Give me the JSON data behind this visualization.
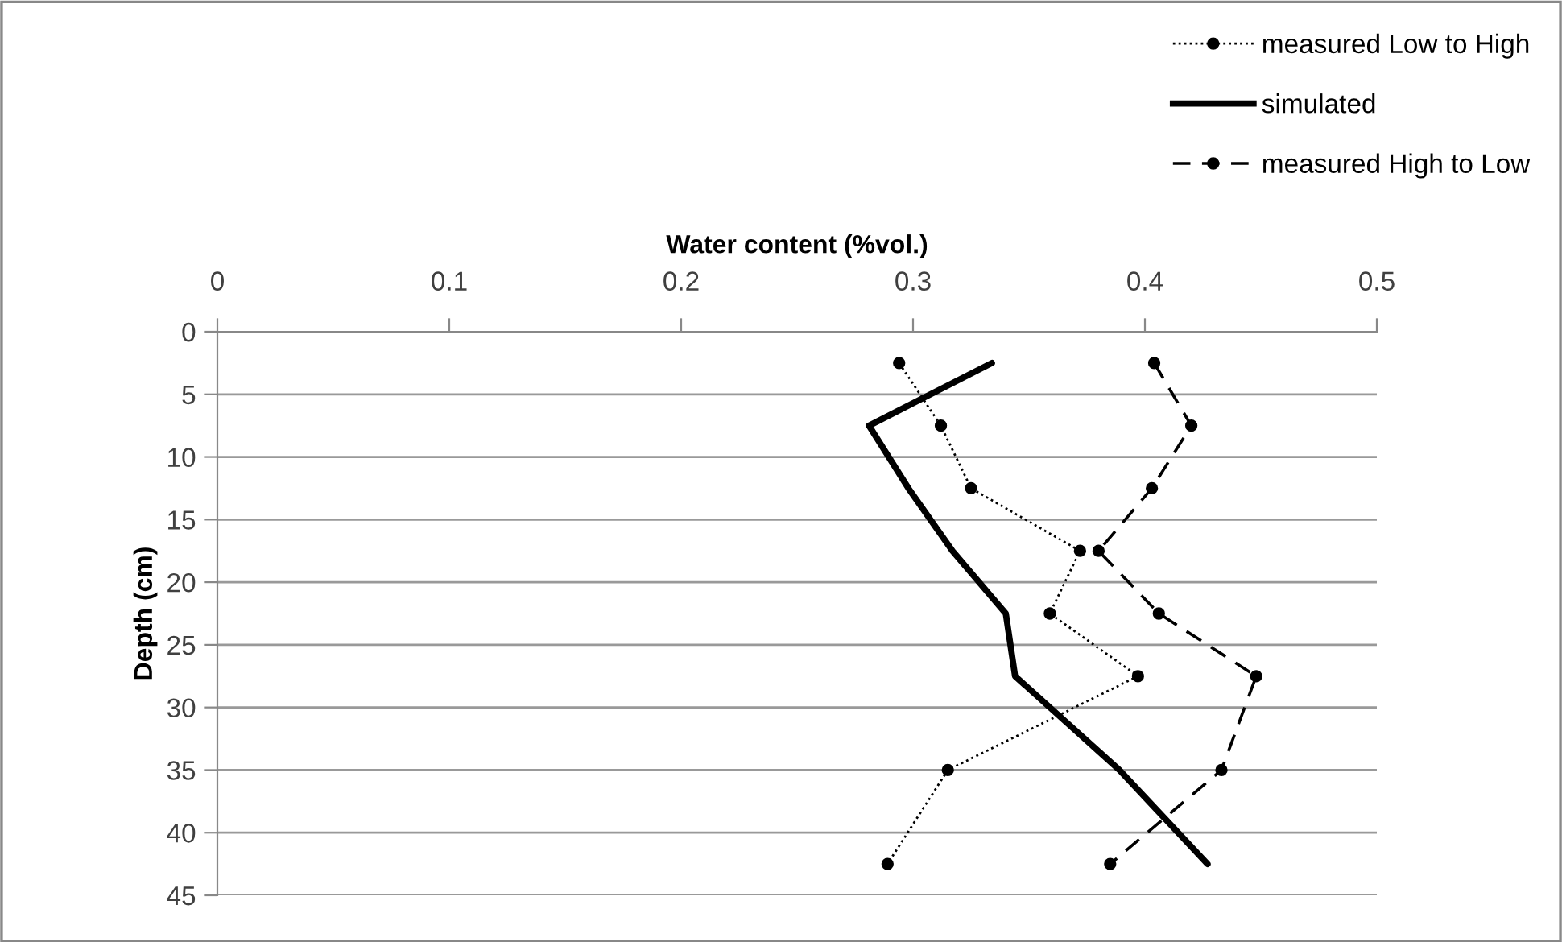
{
  "chart_data": {
    "type": "line",
    "xlabel": "Water content (%vol.)",
    "ylabel": "Depth (cm)",
    "xlim": [
      0,
      0.5
    ],
    "xticks": [
      0,
      0.1,
      0.2,
      0.3,
      0.4,
      0.5
    ],
    "ylim": [
      45,
      0
    ],
    "yticks": [
      0,
      5,
      10,
      15,
      20,
      25,
      30,
      35,
      40,
      45
    ],
    "grid": "y",
    "legend": "top right",
    "series": [
      {
        "name": "measured Low to High",
        "color": "#000000",
        "line_style": "dotted",
        "marker": "circle",
        "x": [
          0.294,
          0.312,
          0.325,
          0.372,
          0.359,
          0.397,
          0.315,
          0.289
        ],
        "values": [
          2.5,
          7.5,
          12.5,
          17.5,
          22.5,
          27.5,
          35,
          42.5
        ]
      },
      {
        "name": "simulated",
        "color": "#000000",
        "line_style": "solid",
        "marker": "none",
        "x": [
          0.334,
          0.281,
          0.298,
          0.317,
          0.34,
          0.344,
          0.389,
          0.427
        ],
        "values": [
          2.5,
          7.5,
          12.5,
          17.5,
          22.5,
          27.5,
          35,
          42.5
        ]
      },
      {
        "name": "measured High to Low",
        "color": "#000000",
        "line_style": "dashed",
        "marker": "circle",
        "x": [
          0.404,
          0.42,
          0.403,
          0.38,
          0.406,
          0.448,
          0.433,
          0.385
        ],
        "values": [
          2.5,
          7.5,
          12.5,
          17.5,
          22.5,
          27.5,
          35,
          42.5
        ]
      }
    ]
  }
}
